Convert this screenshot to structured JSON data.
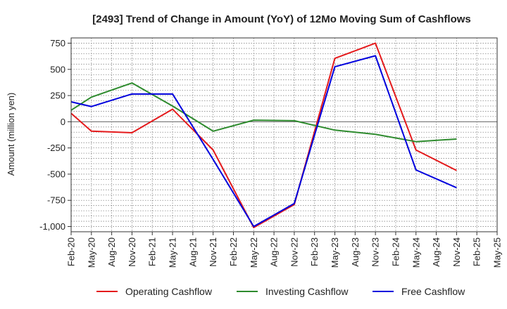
{
  "chart_data": {
    "type": "line",
    "title": "[2493]  Trend of Change in Amount (YoY) of 12Mo Moving Sum of Cashflows",
    "xlabel": "",
    "ylabel": "Amount (million yen)",
    "ylim": [
      -1050,
      800
    ],
    "yticks": [
      750,
      500,
      250,
      0,
      -250,
      -500,
      -750,
      -1000
    ],
    "ytick_labels": [
      "750",
      "500",
      "250",
      "0",
      "-250",
      "-500",
      "-750",
      "-1,000"
    ],
    "categories": [
      "Feb-20",
      "May-20",
      "Aug-20",
      "Nov-20",
      "Feb-21",
      "May-21",
      "Aug-21",
      "Nov-21",
      "Feb-22",
      "May-22",
      "Aug-22",
      "Nov-22",
      "Feb-23",
      "May-23",
      "Aug-23",
      "Nov-23",
      "Feb-24",
      "May-24",
      "Aug-24",
      "Nov-24",
      "Feb-25",
      "May-25"
    ],
    "grid": true,
    "legend_position": "bottom",
    "series": [
      {
        "name": "Operating Cashflow",
        "color": "#e41a1c",
        "points": [
          [
            0,
            80
          ],
          [
            1,
            -90
          ],
          [
            3,
            -105
          ],
          [
            5,
            120
          ],
          [
            7,
            -270
          ],
          [
            9,
            -1010
          ],
          [
            11,
            -790
          ],
          [
            13,
            605
          ],
          [
            15,
            750
          ],
          [
            17,
            -270
          ],
          [
            19,
            -465
          ]
        ]
      },
      {
        "name": "Investing Cashflow",
        "color": "#2e8b2e",
        "points": [
          [
            0,
            110
          ],
          [
            1,
            235
          ],
          [
            3,
            370
          ],
          [
            5,
            150
          ],
          [
            7,
            -90
          ],
          [
            9,
            15
          ],
          [
            11,
            10
          ],
          [
            13,
            -80
          ],
          [
            15,
            -120
          ],
          [
            17,
            -190
          ],
          [
            19,
            -165
          ]
        ]
      },
      {
        "name": "Free Cashflow",
        "color": "#0000dd",
        "points": [
          [
            0,
            190
          ],
          [
            1,
            145
          ],
          [
            3,
            265
          ],
          [
            5,
            265
          ],
          [
            7,
            -360
          ],
          [
            9,
            -1000
          ],
          [
            11,
            -780
          ],
          [
            13,
            525
          ],
          [
            15,
            630
          ],
          [
            17,
            -460
          ],
          [
            19,
            -630
          ]
        ]
      }
    ]
  }
}
